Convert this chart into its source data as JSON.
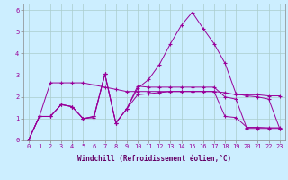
{
  "xlabel": "Windchill (Refroidissement éolien,°C)",
  "bg_color": "#cceeff",
  "line_color": "#990099",
  "grid_color": "#aacccc",
  "xlabel_color": "#660066",
  "xlim": [
    -0.5,
    23.5
  ],
  "ylim": [
    0,
    6.3
  ],
  "xticks": [
    0,
    1,
    2,
    3,
    4,
    5,
    6,
    7,
    8,
    9,
    10,
    11,
    12,
    13,
    14,
    15,
    16,
    17,
    18,
    19,
    20,
    21,
    22,
    23
  ],
  "yticks": [
    0,
    1,
    2,
    3,
    4,
    5,
    6
  ],
  "series1": [
    0,
    1.1,
    1.1,
    1.65,
    1.55,
    1.0,
    1.1,
    3.05,
    0.8,
    1.45,
    2.5,
    2.45,
    2.45,
    2.45,
    2.45,
    2.45,
    2.45,
    2.45,
    2.0,
    1.9,
    0.55,
    0.55,
    0.55,
    0.55
  ],
  "series2": [
    0,
    1.1,
    2.65,
    2.65,
    2.65,
    2.65,
    2.55,
    2.45,
    2.35,
    2.25,
    2.25,
    2.25,
    2.25,
    2.25,
    2.25,
    2.25,
    2.25,
    2.25,
    2.2,
    2.1,
    2.1,
    2.1,
    2.05,
    2.05
  ],
  "series3": [
    0,
    1.1,
    1.1,
    1.65,
    1.55,
    1.0,
    1.1,
    3.05,
    0.8,
    1.45,
    2.4,
    2.8,
    3.5,
    4.45,
    5.3,
    5.9,
    5.15,
    4.45,
    3.55,
    2.15,
    2.05,
    2.0,
    1.9,
    0.55
  ],
  "series4": [
    0,
    1.1,
    1.1,
    1.65,
    1.55,
    1.0,
    1.05,
    3.05,
    0.8,
    1.45,
    2.1,
    2.15,
    2.2,
    2.25,
    2.25,
    2.25,
    2.25,
    2.25,
    1.1,
    1.05,
    0.6,
    0.6,
    0.58,
    0.58
  ],
  "marker": "+",
  "markersize": 3,
  "linewidth": 0.7,
  "tick_fontsize": 5.0,
  "xlabel_fontsize": 5.5
}
